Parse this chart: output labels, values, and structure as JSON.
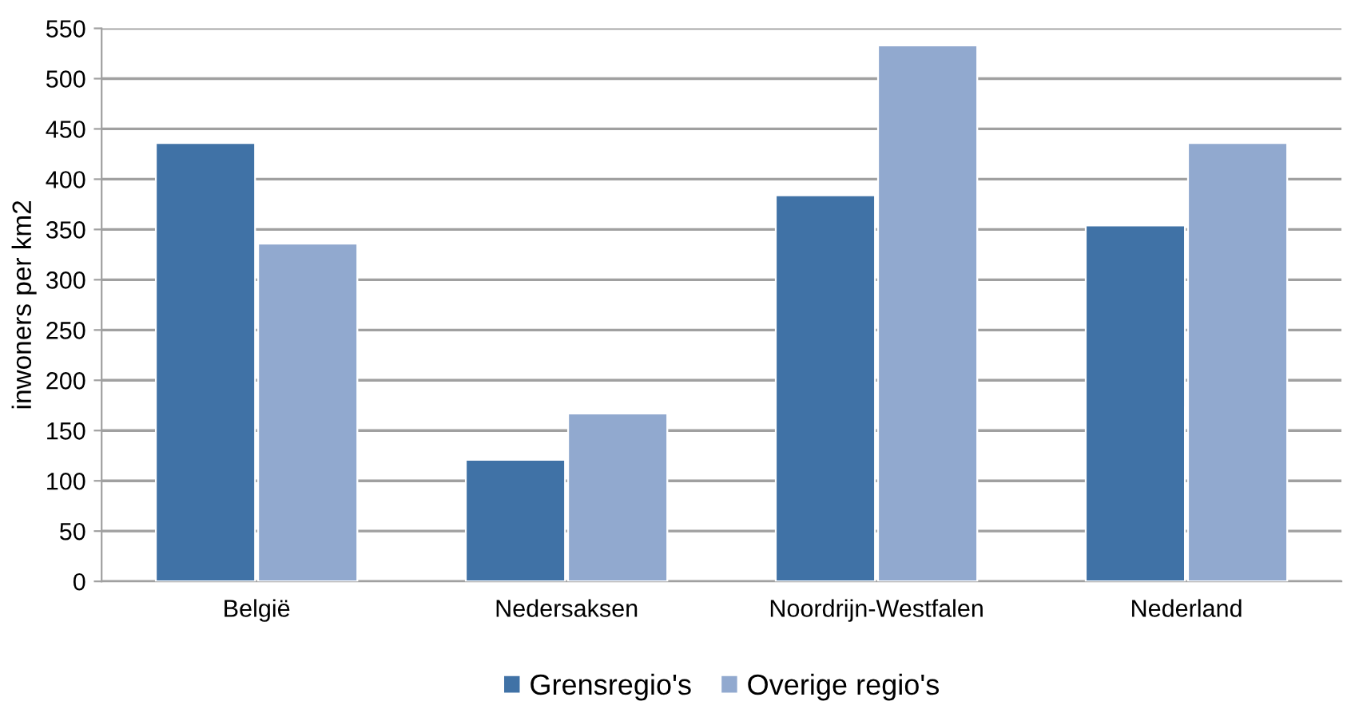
{
  "chart_data": {
    "type": "bar",
    "ylabel": "inwoners per km2",
    "categories": [
      "België",
      "Nedersaksen",
      "Noordrijn-Westfalen",
      "Nederland"
    ],
    "series": [
      {
        "name": "Grensregio's",
        "color": "#4072a6",
        "values": [
          436,
          121,
          384,
          354
        ]
      },
      {
        "name": "Overige regio's",
        "color": "#91a9cf",
        "values": [
          336,
          167,
          533,
          436
        ]
      }
    ],
    "ylim": [
      0,
      550
    ],
    "yticks": [
      0,
      50,
      100,
      150,
      200,
      250,
      300,
      350,
      400,
      450,
      500,
      550
    ],
    "grid": "y",
    "legend": "bottom"
  }
}
